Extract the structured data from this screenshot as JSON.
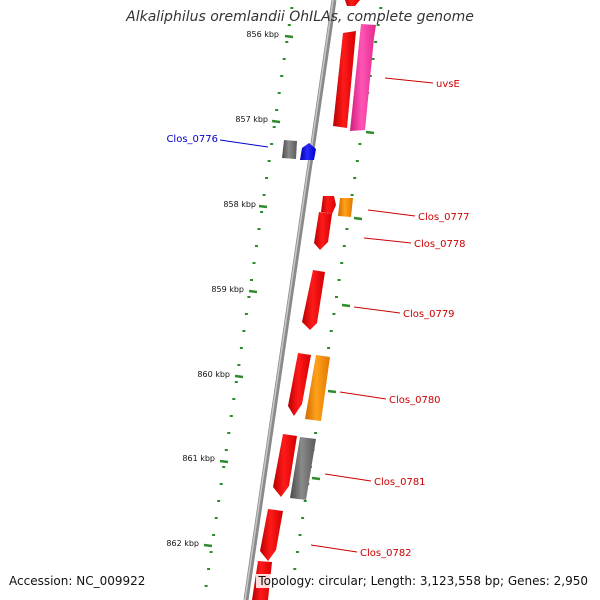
{
  "title": "Alkaliphilus oremlandii OhILAs, complete genome",
  "footer": {
    "accession": "Accession: NC_009922",
    "topology": "Topology: circular; Length: 3,123,558 bp; Genes: 2,950"
  },
  "colors": {
    "backbone": "#8a8a8a",
    "tick": "#2e8b2e",
    "cds_red": "#ee1111",
    "cds_pink": "#ff3fa3",
    "cds_orange": "#ff8c00",
    "cds_gray": "#6e6e6e",
    "cds_blue": "#1414ee",
    "label_red": "#cc0000",
    "label_blue": "#0000cc"
  },
  "ticks": [
    {
      "label": "856 kbp"
    },
    {
      "label": "857 kbp"
    },
    {
      "label": "858 kbp"
    },
    {
      "label": "859 kbp"
    },
    {
      "label": "860 kbp"
    },
    {
      "label": "861 kbp"
    },
    {
      "label": "862 kbp"
    }
  ],
  "labels": {
    "uvsE": "uvsE",
    "clos_0776": "Clos_0776",
    "clos_0777": "Clos_0777",
    "clos_0778": "Clos_0778",
    "clos_0779": "Clos_0779",
    "clos_0780": "Clos_0780",
    "clos_0781": "Clos_0781",
    "clos_0782": "Clos_0782"
  }
}
